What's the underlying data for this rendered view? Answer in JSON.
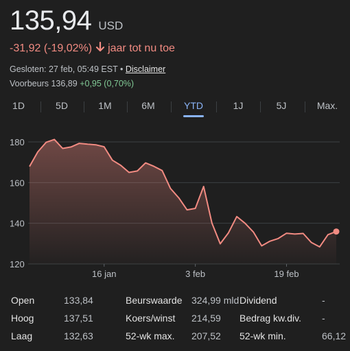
{
  "quote": {
    "price": "135,94",
    "currency": "USD",
    "change": "-31,92 (-19,02%)",
    "period": "jaar tot nu toe",
    "closed": "Gesloten: 27 feb, 05:49 EST",
    "separator": "•",
    "disclaimer": "Disclaimer",
    "premarket_label": "Voorbeurs",
    "premarket_price": "136,89",
    "premarket_change": "+0,95 (0,70%)"
  },
  "tabs": [
    "1D",
    "5D",
    "1M",
    "6M",
    "YTD",
    "1J",
    "5J",
    "Max."
  ],
  "active_tab": "YTD",
  "colors": {
    "line": "#f28b82",
    "accent": "#8ab4f8",
    "up": "#81c995"
  },
  "chart_data": {
    "type": "area",
    "x": [
      "2 jan",
      "3 jan",
      "6 jan",
      "7 jan",
      "8 jan",
      "10 jan",
      "13 jan",
      "14 jan",
      "15 jan",
      "16 jan",
      "17 jan",
      "21 jan",
      "22 jan",
      "23 jan",
      "24 jan",
      "27 jan",
      "28 jan",
      "29 jan",
      "30 jan",
      "31 jan",
      "3 feb",
      "4 feb",
      "5 feb",
      "6 feb",
      "7 feb",
      "10 feb",
      "11 feb",
      "12 feb",
      "13 feb",
      "14 feb",
      "18 feb",
      "19 feb",
      "20 feb",
      "21 feb",
      "24 feb",
      "25 feb",
      "26 feb",
      "27 feb"
    ],
    "series": [
      {
        "values": [
          167.9,
          175.1,
          179.8,
          181.2,
          176.8,
          177.5,
          179.3,
          178.9,
          178.6,
          177.6,
          171,
          168.5,
          165,
          165.7,
          169.7,
          168,
          165.9,
          157.1,
          152.5,
          146.6,
          147.3,
          158.1,
          140.1,
          129.9,
          135.3,
          143.3,
          140,
          135.7,
          128.9,
          131.2,
          132.5,
          135.1,
          134.7,
          135,
          130.5,
          128.4,
          134.4,
          135.94
        ]
      }
    ],
    "ylim": [
      120,
      185
    ],
    "yticks": [
      120,
      140,
      160,
      180
    ],
    "xtick_labels": [
      {
        "label": "16 jan",
        "at": "16 jan"
      },
      {
        "label": "3 feb",
        "at": "3 feb"
      },
      {
        "label": "19 feb",
        "at": "19 feb"
      }
    ],
    "grid": true
  },
  "stats": [
    {
      "key": "Open",
      "value": "133,84"
    },
    {
      "key": "Hoog",
      "value": "137,51"
    },
    {
      "key": "Laag",
      "value": "132,63"
    },
    {
      "key": "Beurswaarde",
      "value": "324,99 mld"
    },
    {
      "key": "Koers/winst",
      "value": "214,59"
    },
    {
      "key": "52-wk max.",
      "value": "207,52"
    },
    {
      "key": "Dividend",
      "value": "-"
    },
    {
      "key": "Bedrag kw.div.",
      "value": "-"
    },
    {
      "key": "52-wk min.",
      "value": "66,12"
    }
  ]
}
